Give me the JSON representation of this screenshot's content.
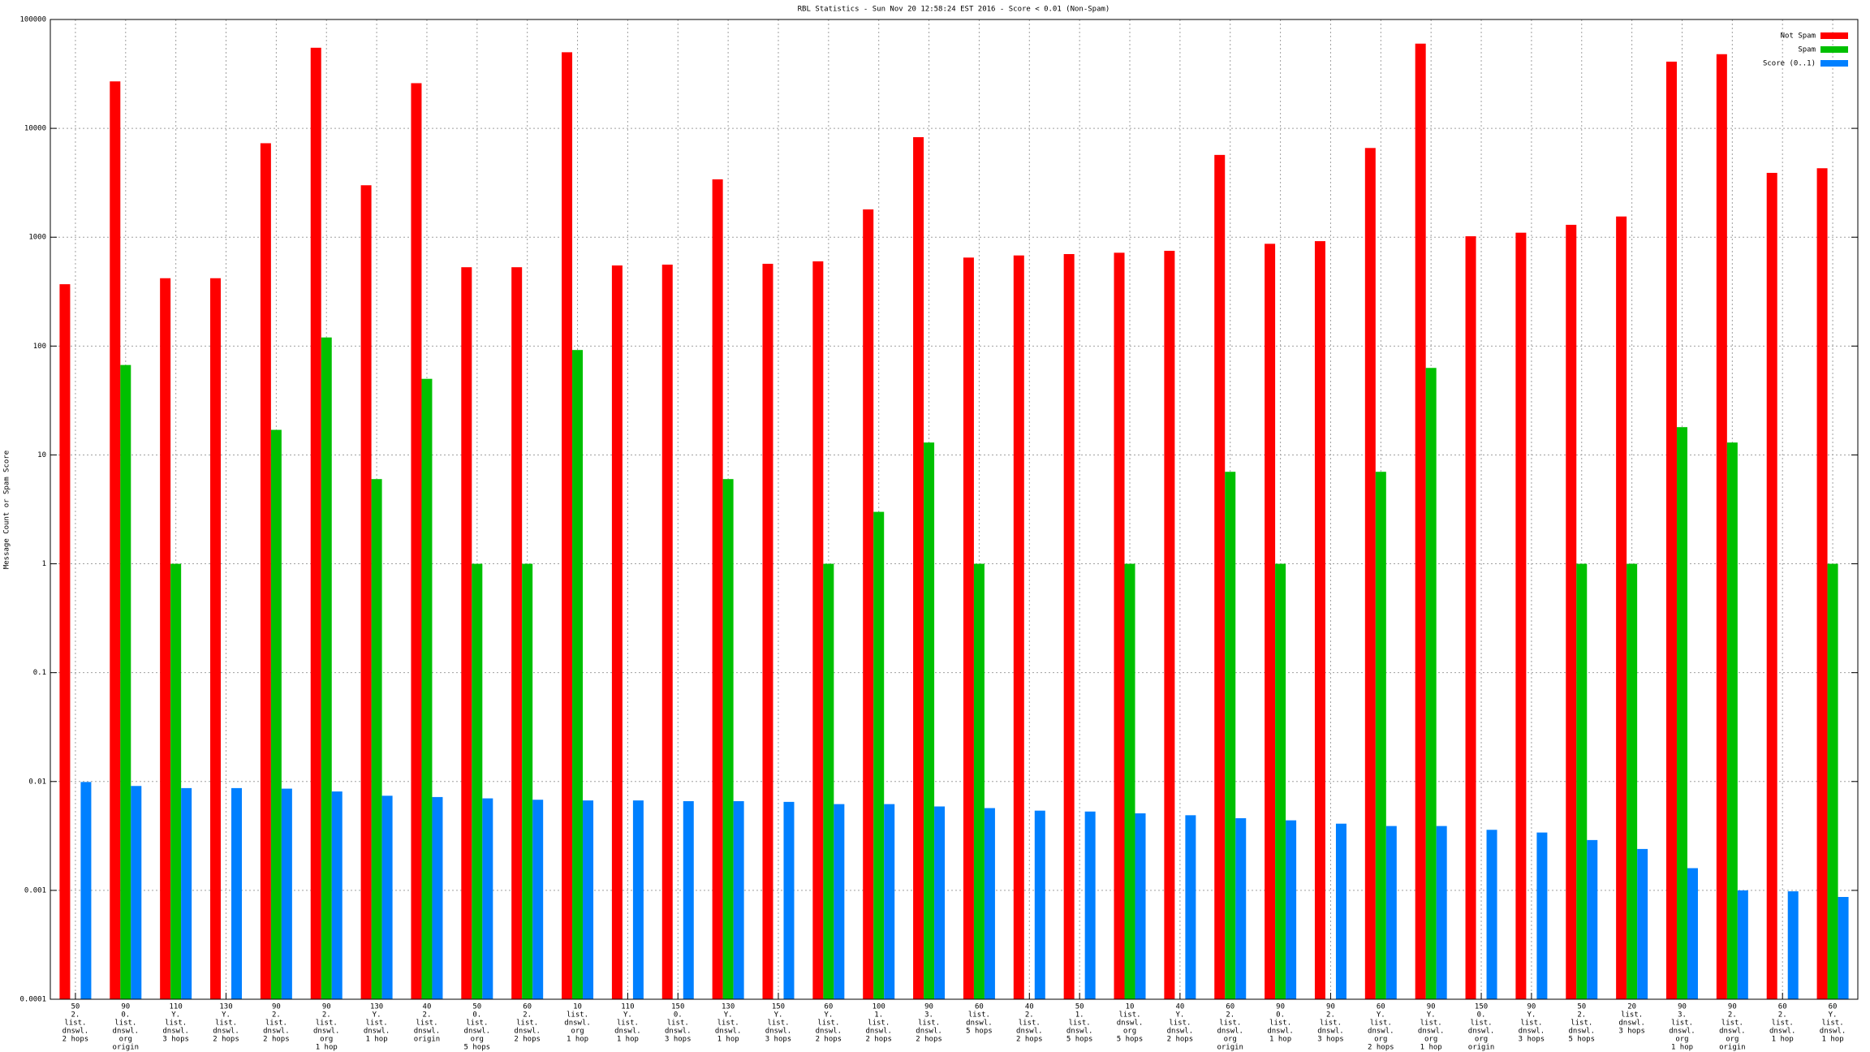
{
  "chart_data": {
    "type": "bar",
    "log_scale": true,
    "grid": true,
    "legend": "top-right",
    "title": "RBL Statistics - Sun Nov 20 12:58:24 EST 2016 - Score < 0.01 (Non-Spam)",
    "y_label": "Message Count or Spam Score",
    "categories": [
      [
        "50",
        "2.",
        "list.",
        "dnswl.",
        "2 hops"
      ],
      [
        "90",
        "0.",
        "list.",
        "dnswl.",
        "org",
        "origin"
      ],
      [
        "110",
        "Y.",
        "list.",
        "dnswl.",
        "3 hops"
      ],
      [
        "130",
        "Y.",
        "list.",
        "dnswl.",
        "2 hops"
      ],
      [
        "90",
        "2.",
        "list.",
        "dnswl.",
        "2 hops"
      ],
      [
        "90",
        "2.",
        "list.",
        "dnswl.",
        "org",
        "1 hop"
      ],
      [
        "130",
        "Y.",
        "list.",
        "dnswl.",
        "1 hop"
      ],
      [
        "40",
        "2.",
        "list.",
        "dnswl.",
        "origin"
      ],
      [
        "50",
        "0.",
        "list.",
        "dnswl.",
        "org",
        "5 hops"
      ],
      [
        "60",
        "2.",
        "list.",
        "dnswl.",
        "2 hops"
      ],
      [
        "10",
        "list.",
        "dnswl.",
        "org",
        "1 hop"
      ],
      [
        "110",
        "Y.",
        "list.",
        "dnswl.",
        "1 hop"
      ],
      [
        "150",
        "0.",
        "list.",
        "dnswl.",
        "3 hops"
      ],
      [
        "130",
        "Y.",
        "list.",
        "dnswl.",
        "1 hop"
      ],
      [
        "150",
        "Y.",
        "list.",
        "dnswl.",
        "3 hops"
      ],
      [
        "60",
        "Y.",
        "list.",
        "dnswl.",
        "2 hops"
      ],
      [
        "100",
        "1.",
        "list.",
        "dnswl.",
        "2 hops"
      ],
      [
        "90",
        "3.",
        "list.",
        "dnswl.",
        "2 hops"
      ],
      [
        "60",
        "list.",
        "dnswl.",
        "5 hops"
      ],
      [
        "40",
        "2.",
        "list.",
        "dnswl.",
        "2 hops"
      ],
      [
        "50",
        "1.",
        "list.",
        "dnswl.",
        "5 hops"
      ],
      [
        "10",
        "list.",
        "dnswl.",
        "org",
        "5 hops"
      ],
      [
        "40",
        "Y.",
        "list.",
        "dnswl.",
        "2 hops"
      ],
      [
        "60",
        "2.",
        "list.",
        "dnswl.",
        "org",
        "origin"
      ],
      [
        "90",
        "0.",
        "list.",
        "dnswl.",
        "1 hop"
      ],
      [
        "90",
        "2.",
        "list.",
        "dnswl.",
        "3 hops"
      ],
      [
        "60",
        "Y.",
        "list.",
        "dnswl.",
        "org",
        "2 hops"
      ],
      [
        "90",
        "Y.",
        "list.",
        "dnswl.",
        "org",
        "1 hop"
      ],
      [
        "150",
        "0.",
        "list.",
        "dnswl.",
        "org",
        "origin"
      ],
      [
        "90",
        "Y.",
        "list.",
        "dnswl.",
        "3 hops"
      ],
      [
        "50",
        "2.",
        "list.",
        "dnswl.",
        "5 hops"
      ],
      [
        "20",
        "list.",
        "dnswl.",
        "3 hops"
      ],
      [
        "90",
        "3.",
        "list.",
        "dnswl.",
        "org",
        "1 hop"
      ],
      [
        "90",
        "2.",
        "list.",
        "dnswl.",
        "org",
        "origin"
      ],
      [
        "60",
        "2.",
        "list.",
        "dnswl.",
        "1 hop"
      ],
      [
        "60",
        "Y.",
        "list.",
        "dnswl.",
        "1 hop"
      ]
    ],
    "series": [
      {
        "name": "Not Spam",
        "color": "#ff0000",
        "values": [
          370,
          27000,
          420,
          420,
          7300,
          55000,
          3000,
          26000,
          530,
          530,
          50000,
          550,
          560,
          3400,
          570,
          600,
          1800,
          8300,
          650,
          680,
          700,
          720,
          750,
          5700,
          870,
          920,
          6600,
          60000,
          1020,
          1100,
          1300,
          1550,
          41000,
          48000,
          3900,
          4300
        ]
      },
      {
        "name": "Spam",
        "color": "#00c000",
        "values": [
          null,
          67,
          1,
          null,
          17,
          120,
          6,
          50,
          1,
          1,
          92,
          null,
          null,
          6,
          null,
          1,
          3,
          13,
          1,
          null,
          null,
          1,
          null,
          7,
          1,
          null,
          7,
          63,
          null,
          null,
          1,
          1,
          18,
          13,
          null,
          1
        ]
      },
      {
        "name": "Score (0..1)",
        "color": "#0080ff",
        "values": [
          0.0099,
          0.0091,
          0.0087,
          0.0087,
          0.0086,
          0.0081,
          0.0074,
          0.0072,
          0.007,
          0.0068,
          0.0067,
          0.0067,
          0.0066,
          0.0066,
          0.0065,
          0.0062,
          0.0062,
          0.0059,
          0.0057,
          0.0054,
          0.0053,
          0.0051,
          0.0049,
          0.0046,
          0.0044,
          0.0041,
          0.0039,
          0.0039,
          0.0036,
          0.0034,
          0.0029,
          0.0024,
          0.0016,
          0.001,
          0.00098,
          0.00087
        ]
      }
    ],
    "ylim": [
      0.0001,
      100000
    ],
    "yticks": [
      0.0001,
      0.001,
      0.01,
      0.1,
      1,
      10,
      100,
      1000,
      10000,
      100000
    ]
  }
}
